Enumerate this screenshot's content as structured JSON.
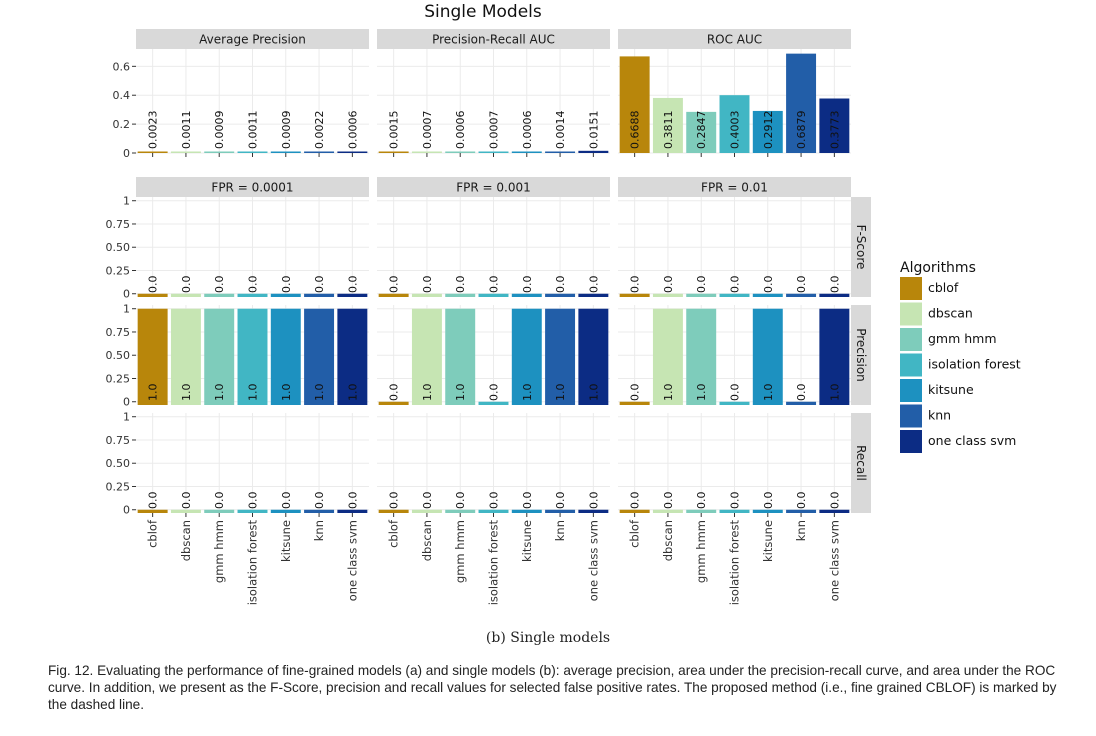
{
  "chart_data": {
    "type": "bar",
    "title": "Single Models",
    "legend_title": "Algorithms",
    "legend_position": "right",
    "categories": [
      "cblof",
      "dbscan",
      "gmm hmm",
      "isolation forest",
      "kitsune",
      "knn",
      "one class svm"
    ],
    "colors": [
      "#B8860B",
      "#C6E5B3",
      "#7ECCBB",
      "#41B6C4",
      "#1D91C0",
      "#225EA8",
      "#0C2C84"
    ],
    "top_row": {
      "ylim": [
        0,
        0.72
      ],
      "yticks": [
        0,
        0.2,
        0.4,
        0.6
      ],
      "ytick_labels": [
        "0",
        "0.2",
        "0.4",
        "0.6"
      ],
      "panels": [
        {
          "title": "Average Precision",
          "values": [
            0.0023,
            0.0011,
            0.0009,
            0.0011,
            0.0009,
            0.0022,
            0.0006
          ],
          "labels": [
            "0.0023",
            "0.0011",
            "0.0009",
            "0.0011",
            "0.0009",
            "0.0022",
            "0.0006"
          ]
        },
        {
          "title": "Precision-Recall AUC",
          "values": [
            0.0015,
            0.0007,
            0.0006,
            0.0007,
            0.0006,
            0.0014,
            0.0151
          ],
          "labels": [
            "0.0015",
            "0.0007",
            "0.0006",
            "0.0007",
            "0.0006",
            "0.0014",
            "0.0151"
          ]
        },
        {
          "title": "ROC AUC",
          "values": [
            0.6688,
            0.3811,
            0.2847,
            0.4003,
            0.2912,
            0.6879,
            0.3773
          ],
          "labels": [
            "0.6688",
            "0.3811",
            "0.2847",
            "0.4003",
            "0.2912",
            "0.6879",
            "0.3773"
          ]
        }
      ]
    },
    "grid": {
      "ylim": [
        0,
        1
      ],
      "yticks": [
        0,
        0.25,
        0.5,
        0.75,
        1
      ],
      "ytick_labels": [
        "0",
        "0.25",
        "0.50",
        "0.75",
        "1"
      ],
      "columns": [
        "FPR = 0.0001",
        "FPR = 0.001",
        "FPR = 0.01"
      ],
      "rows": [
        {
          "label": "F-Score",
          "values": [
            [
              0,
              0,
              0,
              0,
              0,
              0,
              0
            ],
            [
              0,
              0,
              0,
              0,
              0,
              0,
              0
            ],
            [
              0,
              0,
              0,
              0,
              0,
              0,
              0
            ]
          ],
          "labels": [
            [
              "0.0",
              "0.0",
              "0.0",
              "0.0",
              "0.0",
              "0.0",
              "0.0"
            ],
            [
              "0.0",
              "0.0",
              "0.0",
              "0.0",
              "0.0",
              "0.0",
              "0.0"
            ],
            [
              "0.0",
              "0.0",
              "0.0",
              "0.0",
              "0.0",
              "0.0",
              "0.0"
            ]
          ]
        },
        {
          "label": "Precision",
          "values": [
            [
              1,
              1,
              1,
              1,
              1,
              1,
              1
            ],
            [
              0,
              1,
              1,
              0,
              1,
              1,
              1
            ],
            [
              0,
              1,
              1,
              0,
              1,
              0,
              1
            ]
          ],
          "labels": [
            [
              "1.0",
              "1.0",
              "1.0",
              "1.0",
              "1.0",
              "1.0",
              "1.0"
            ],
            [
              "0.0",
              "1.0",
              "1.0",
              "0.0",
              "1.0",
              "1.0",
              "1.0"
            ],
            [
              "0.0",
              "1.0",
              "1.0",
              "0.0",
              "1.0",
              "0.0",
              "1.0"
            ]
          ]
        },
        {
          "label": "Recall",
          "values": [
            [
              0,
              0,
              0,
              0,
              0,
              0,
              0
            ],
            [
              0,
              0,
              0,
              0,
              0,
              0,
              0
            ],
            [
              0,
              0,
              0,
              0,
              0,
              0,
              0
            ]
          ],
          "labels": [
            [
              "0.0",
              "0.0",
              "0.0",
              "0.0",
              "0.0",
              "0.0",
              "0.0"
            ],
            [
              "0.0",
              "0.0",
              "0.0",
              "0.0",
              "0.0",
              "0.0",
              "0.0"
            ],
            [
              "0.0",
              "0.0",
              "0.0",
              "0.0",
              "0.0",
              "0.0",
              "0.0"
            ]
          ]
        }
      ]
    }
  },
  "subcaption": "(b) Single models",
  "caption": "Fig. 12. Evaluating the performance of fine-grained models (a) and single models (b): average precision, area under the precision-recall curve, and area under the ROC curve. In addition, we present as the F-Score, precision and recall values for selected false positive rates. The proposed method (i.e., fine grained CBLOF) is marked by the dashed line."
}
